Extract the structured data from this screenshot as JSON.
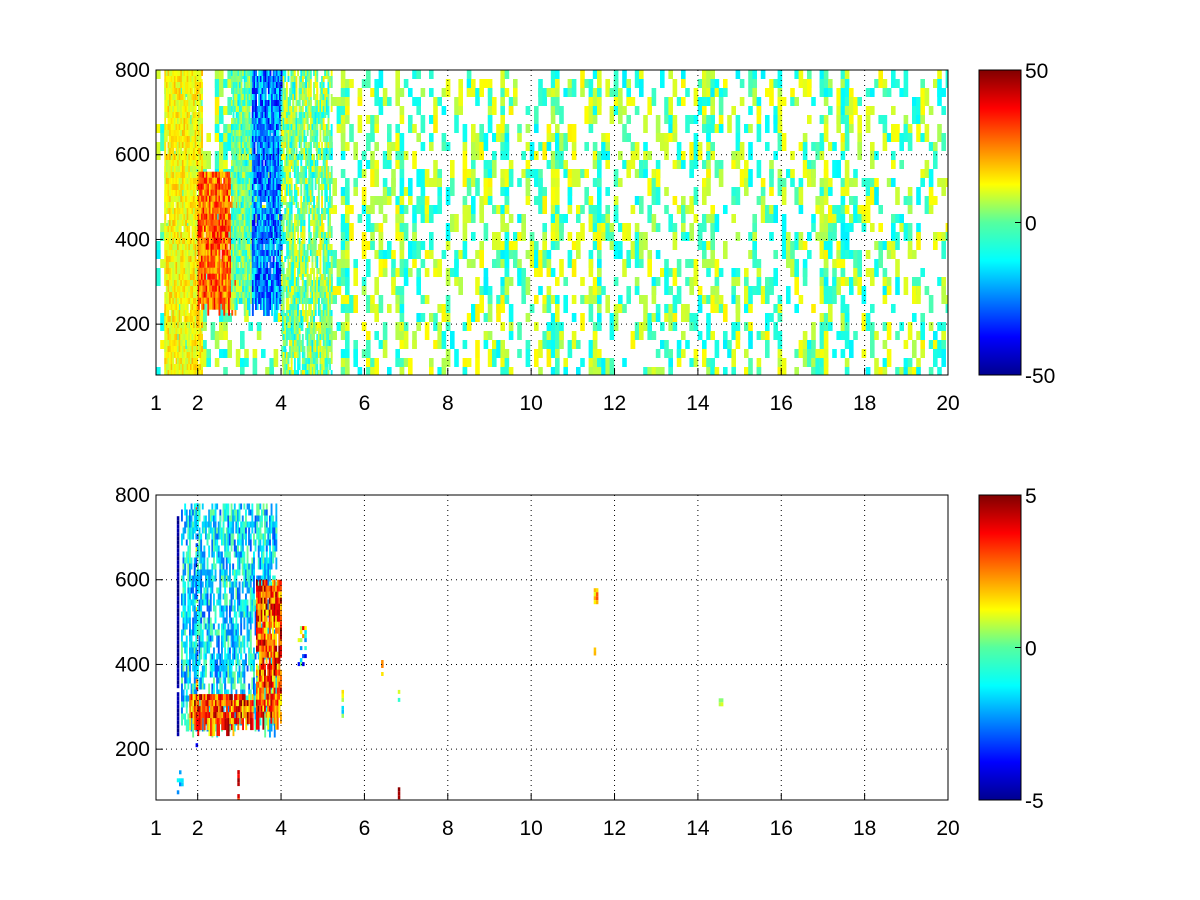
{
  "chart_data": [
    {
      "type": "heatmap",
      "x_ticks": [
        1,
        2,
        4,
        6,
        8,
        10,
        12,
        14,
        16,
        18,
        20
      ],
      "y_ticks": [
        200,
        400,
        600,
        800
      ],
      "xlim": [
        1,
        20
      ],
      "ylim": [
        80,
        800
      ],
      "grid": true,
      "grid_style": "dotted",
      "colormap": "jet",
      "colorbar": {
        "ticks": [
          50,
          0,
          -50
        ],
        "range": [
          -50,
          50
        ],
        "position": "right"
      },
      "density": 0.5,
      "clusters": [
        {
          "x": [
            1.2,
            2.1
          ],
          "y": [
            80,
            800
          ],
          "value": [
            5,
            20
          ],
          "density": 0.85,
          "streaky": true
        },
        {
          "x": [
            2.0,
            2.9
          ],
          "y": [
            250,
            560
          ],
          "value": [
            15,
            40
          ],
          "density": 0.9,
          "streaky": true
        },
        {
          "x": [
            2.8,
            3.3
          ],
          "y": [
            250,
            800
          ],
          "value": [
            -15,
            10
          ],
          "density": 0.85,
          "streaky": true
        },
        {
          "x": [
            3.3,
            4.0
          ],
          "y": [
            250,
            800
          ],
          "value": [
            -40,
            -10
          ],
          "density": 0.85,
          "streaky": true
        },
        {
          "x": [
            4.0,
            5.2
          ],
          "y": [
            80,
            800
          ],
          "value": [
            -15,
            15
          ],
          "density": 0.5,
          "streaky": true
        }
      ],
      "strong_columns_x": [
        1.6,
        2.0,
        2.5,
        3.0,
        4.2,
        5.5,
        6.8,
        9.3,
        10.5,
        11.5,
        14.2,
        17.0,
        17.5
      ]
    },
    {
      "type": "heatmap",
      "x_ticks": [
        1,
        2,
        4,
        6,
        8,
        10,
        12,
        14,
        16,
        18,
        20
      ],
      "y_ticks": [
        200,
        400,
        600,
        800
      ],
      "xlim": [
        1,
        20
      ],
      "ylim": [
        80,
        800
      ],
      "grid": true,
      "grid_style": "dotted",
      "colormap": "jet",
      "colorbar": {
        "ticks": [
          5,
          0,
          -5
        ],
        "range": [
          -5,
          5
        ],
        "position": "right"
      },
      "clusters": [
        {
          "x": [
            1.5,
            1.55
          ],
          "y": [
            240,
            750
          ],
          "value": [
            -5,
            -4.5
          ],
          "density": 0.95
        },
        {
          "x": [
            1.95,
            2.0
          ],
          "y": [
            190,
            790
          ],
          "value": [
            -5,
            5
          ],
          "density": 0.6
        },
        {
          "x": [
            1.6,
            3.9
          ],
          "y": [
            260,
            780
          ],
          "value": [
            -3,
            0
          ],
          "density": 0.45,
          "streaky": true
        },
        {
          "x": [
            1.8,
            3.3
          ],
          "y": [
            270,
            330
          ],
          "value": [
            1,
            5
          ],
          "density": 0.8,
          "streaky": true
        },
        {
          "x": [
            3.4,
            4.0
          ],
          "y": [
            280,
            600
          ],
          "value": [
            1,
            5
          ],
          "density": 0.75,
          "streaky": true
        },
        {
          "x": [
            4.4,
            4.6
          ],
          "y": [
            400,
            500
          ],
          "value": [
            -4,
            4
          ],
          "density": 0.4
        },
        {
          "x": [
            5.45,
            5.5
          ],
          "y": [
            280,
            340
          ],
          "value": [
            -3,
            4
          ],
          "density": 0.8
        },
        {
          "x": [
            6.4,
            6.45
          ],
          "y": [
            380,
            420
          ],
          "value": [
            1,
            3
          ],
          "density": 0.7
        },
        {
          "x": [
            6.8,
            6.85
          ],
          "y": [
            310,
            340
          ],
          "value": [
            -3,
            3
          ],
          "density": 0.7
        },
        {
          "x": [
            6.8,
            6.85
          ],
          "y": [
            90,
            110
          ],
          "value": [
            4,
            5
          ],
          "density": 0.9
        },
        {
          "x": [
            2.95,
            3.0
          ],
          "y": [
            80,
            160
          ],
          "value": [
            3,
            5
          ],
          "density": 0.5
        },
        {
          "x": [
            11.5,
            11.6
          ],
          "y": [
            550,
            580
          ],
          "value": [
            1,
            3
          ],
          "density": 0.9
        },
        {
          "x": [
            11.5,
            11.55
          ],
          "y": [
            430,
            440
          ],
          "value": [
            1,
            2
          ],
          "density": 0.8
        },
        {
          "x": [
            14.5,
            14.6
          ],
          "y": [
            310,
            320
          ],
          "value": [
            0,
            1
          ],
          "density": 1.0
        },
        {
          "x": [
            1.5,
            1.65
          ],
          "y": [
            100,
            150
          ],
          "value": [
            -3,
            -1
          ],
          "density": 0.5
        }
      ]
    }
  ]
}
